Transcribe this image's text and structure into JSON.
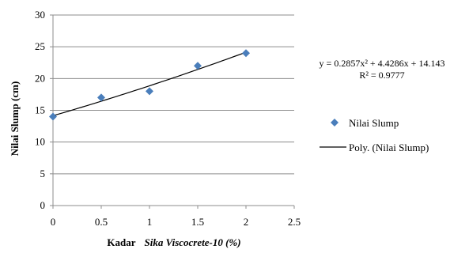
{
  "chart_data": {
    "type": "scatter",
    "x": [
      0,
      0.5,
      1,
      1.5,
      2
    ],
    "series": [
      {
        "name": "Nilai Slump",
        "values": [
          14,
          17,
          18,
          22,
          24
        ],
        "color": "#4a7ebb",
        "marker": "diamond"
      }
    ],
    "trendline": {
      "name": "Poly. (Nilai Slump)",
      "type": "polynomial",
      "coefficients": {
        "a": 0.2857,
        "b": 4.4286,
        "c": 14.143
      },
      "x_range": [
        0,
        2
      ],
      "color": "#000000"
    },
    "equation": "y = 0.2857x² + 4.4286x + 14.143",
    "r_squared": "R² = 0.9777",
    "xlabel_prefix": "Kadar",
    "xlabel_italic": "Sika Viscocrete-10 (%)",
    "ylabel": "Nilai Slump (cm)",
    "xlim": [
      0,
      2.5
    ],
    "ylim": [
      0,
      30
    ],
    "xticks": [
      "0",
      "0.5",
      "1",
      "1.5",
      "2",
      "2.5"
    ],
    "yticks": [
      "0",
      "5",
      "10",
      "15",
      "20",
      "25",
      "30"
    ],
    "grid": true,
    "legend_position": "right"
  }
}
